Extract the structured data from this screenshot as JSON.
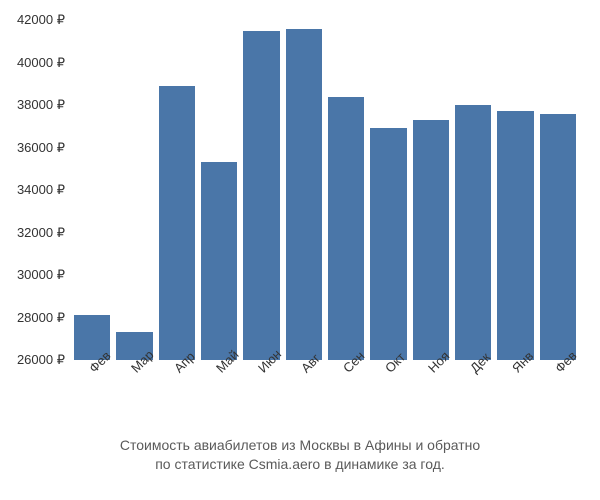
{
  "chart": {
    "type": "bar",
    "categories": [
      "Фев",
      "Мар",
      "Апр",
      "Май",
      "Июн",
      "Авг",
      "Сен",
      "Окт",
      "Ноя",
      "Дек",
      "Янв",
      "Фев"
    ],
    "values": [
      28100,
      27300,
      38900,
      35300,
      41500,
      41600,
      38400,
      36900,
      37300,
      38000,
      37700,
      37600
    ],
    "bar_color": "#4a76a8",
    "background_color": "#ffffff",
    "ylim": [
      26000,
      42000
    ],
    "ytick_step": 2000,
    "yticks": [
      26000,
      28000,
      30000,
      32000,
      34000,
      36000,
      38000,
      40000,
      42000
    ],
    "ytick_labels": [
      "26000 ₽",
      "28000 ₽",
      "30000 ₽",
      "32000 ₽",
      "34000 ₽",
      "36000 ₽",
      "38000 ₽",
      "40000 ₽",
      "42000 ₽"
    ],
    "xlabel_rotation": -45,
    "bar_gap": 6,
    "axis_fontsize": 13,
    "axis_color": "#333333",
    "caption_fontsize": 14,
    "caption_color": "#5a5a5a"
  },
  "caption": {
    "line1": "Стоимость авиабилетов из Москвы в Афины и обратно",
    "line2": "по статистике Csmia.aero в динамике за год."
  }
}
